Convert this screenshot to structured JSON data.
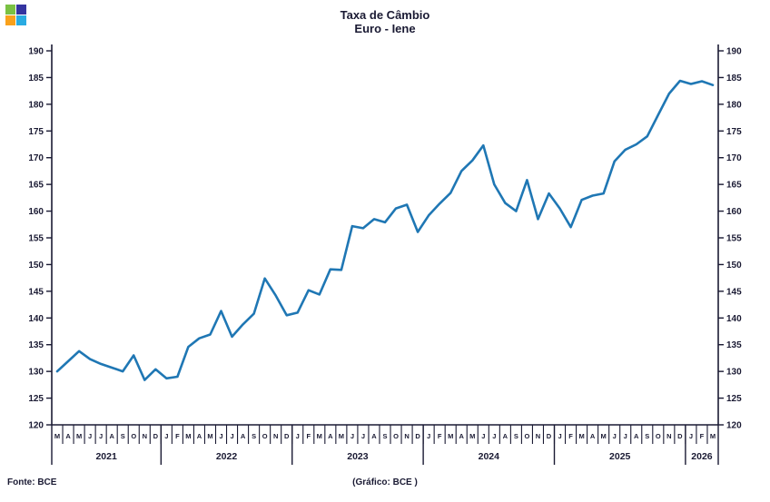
{
  "header": {
    "title_line1": "Taxa de Câmbio",
    "title_line2": "Euro - Iene"
  },
  "logo": {
    "top_left_color": "#7AC143",
    "top_right_color": "#3434A0",
    "bottom_left_color": "#F9A11B",
    "bottom_right_color": "#29ABE2"
  },
  "footer": {
    "source": "Fonte: BCE",
    "credit": "(Gráfico: BCE )"
  },
  "chart_data": {
    "type": "line",
    "title": "Taxa de Câmbio Euro - Iene",
    "xlabel": "",
    "ylabel": "",
    "ylim": [
      120,
      190
    ],
    "ytick_step": 5,
    "grid": false,
    "legend": "none",
    "line_color": "#1F77B4",
    "axis_color": "#1a1a33",
    "years": [
      {
        "label": "2021",
        "month_letters": [
          "M",
          "A",
          "M",
          "J",
          "J",
          "A",
          "S",
          "O",
          "N",
          "D"
        ]
      },
      {
        "label": "2022",
        "month_letters": [
          "J",
          "F",
          "M",
          "A",
          "M",
          "J",
          "J",
          "A",
          "S",
          "O",
          "N",
          "D"
        ]
      },
      {
        "label": "2023",
        "month_letters": [
          "J",
          "F",
          "M",
          "A",
          "M",
          "J",
          "J",
          "A",
          "S",
          "O",
          "N",
          "D"
        ]
      },
      {
        "label": "2024",
        "month_letters": [
          "J",
          "F",
          "M",
          "A",
          "M",
          "J",
          "J",
          "A",
          "S",
          "O",
          "N",
          "D"
        ]
      },
      {
        "label": "2025",
        "month_letters": [
          "J",
          "F",
          "M",
          "A",
          "M",
          "J",
          "J",
          "A",
          "S",
          "O",
          "N",
          "D"
        ]
      },
      {
        "label": "2026",
        "month_letters": [
          "J",
          "F",
          "M"
        ]
      }
    ],
    "values": [
      130.0,
      131.9,
      133.8,
      132.3,
      131.4,
      130.7,
      130.0,
      133.0,
      128.4,
      130.4,
      128.7,
      129.0,
      134.6,
      136.2,
      136.9,
      141.3,
      136.5,
      138.8,
      140.8,
      147.4,
      144.2,
      140.5,
      141.0,
      145.2,
      144.4,
      149.1,
      149.0,
      157.2,
      156.8,
      158.5,
      157.9,
      160.5,
      161.2,
      156.1,
      159.2,
      161.4,
      163.4,
      167.5,
      169.5,
      172.3,
      165.0,
      161.5,
      160.0,
      165.8,
      158.5,
      163.3,
      160.5,
      157.0,
      162.1,
      162.9,
      163.3,
      169.3,
      171.5,
      172.5,
      174.0,
      178.0,
      182.0,
      184.4,
      183.8,
      184.3,
      183.6
    ]
  }
}
